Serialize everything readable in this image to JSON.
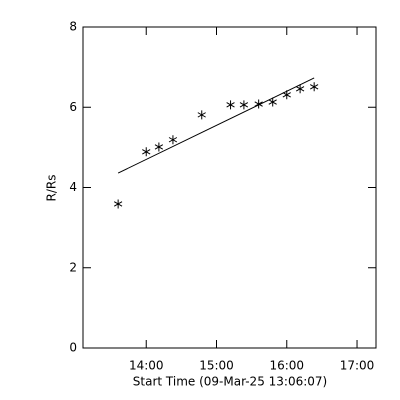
{
  "chart_data": {
    "type": "scatter",
    "xlabel": "Start Time (09-Mar-25 13:06:07)",
    "ylabel": "R/Rs",
    "xlim": [
      13.1,
      17.27
    ],
    "ylim": [
      0,
      8
    ],
    "xticks": [
      {
        "value": 14,
        "label": "14:00"
      },
      {
        "value": 15,
        "label": "15:00"
      },
      {
        "value": 16,
        "label": "16:00"
      },
      {
        "value": 17,
        "label": "17:00"
      }
    ],
    "yticks": [
      0,
      2,
      4,
      6,
      8
    ],
    "color": "#000000",
    "series": [
      {
        "type": "scatter",
        "x": [
          13.6,
          14.0,
          14.18,
          14.38,
          14.79,
          15.2,
          15.39,
          15.6,
          15.8,
          16.0,
          16.19,
          16.39
        ],
        "values": [
          3.59,
          4.89,
          5.01,
          5.19,
          5.81,
          6.06,
          6.06,
          6.08,
          6.13,
          6.31,
          6.46,
          6.51
        ]
      },
      {
        "type": "line",
        "x": [
          13.6,
          16.39
        ],
        "values": [
          4.36,
          6.73
        ]
      }
    ]
  }
}
